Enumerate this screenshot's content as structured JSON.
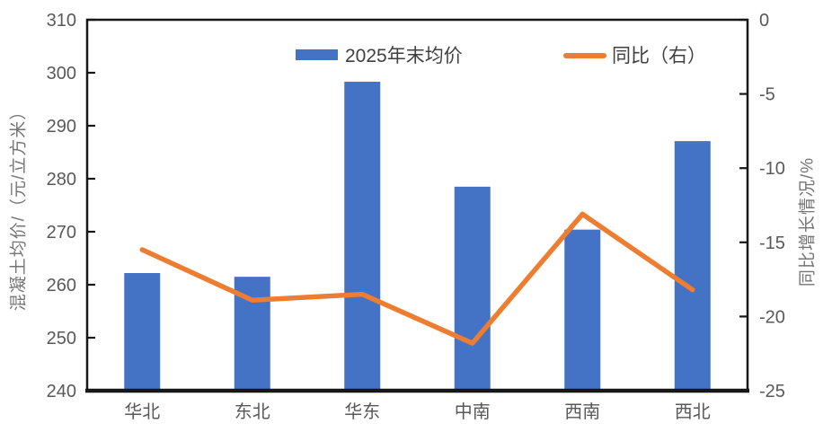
{
  "chart_data": {
    "type": "bar",
    "subtype": "combo-bar-line-dual-axis",
    "title": "",
    "categories": [
      "华北",
      "东北",
      "华东",
      "中南",
      "西南",
      "西北"
    ],
    "series": [
      {
        "name": "2025年末均价",
        "type": "bar",
        "axis": "left",
        "values": [
          262.2,
          261.5,
          298.3,
          278.5,
          270.4,
          287.1
        ]
      },
      {
        "name": "同比（右）",
        "type": "line",
        "axis": "right",
        "values": [
          -15.5,
          -18.9,
          -18.5,
          -21.8,
          -13.1,
          -18.2
        ]
      }
    ],
    "left_axis": {
      "label": "混凝土均价/（元/立方米）",
      "range": [
        240,
        310
      ],
      "ticks": [
        310,
        300,
        290,
        280,
        270,
        260,
        250,
        240
      ]
    },
    "right_axis": {
      "label": "同比增长情况/%",
      "range": [
        -25,
        0
      ],
      "ticks": [
        0,
        -5,
        -10,
        -15,
        -20,
        -25
      ]
    },
    "legend_position": "top-inside",
    "grid": false
  },
  "colors": {
    "bar": "#4472C4",
    "line": "#ED7D31",
    "axis": "#171717",
    "tick_text": "#595959",
    "axis_title_text": "#757575",
    "legend_text": "#404040"
  }
}
